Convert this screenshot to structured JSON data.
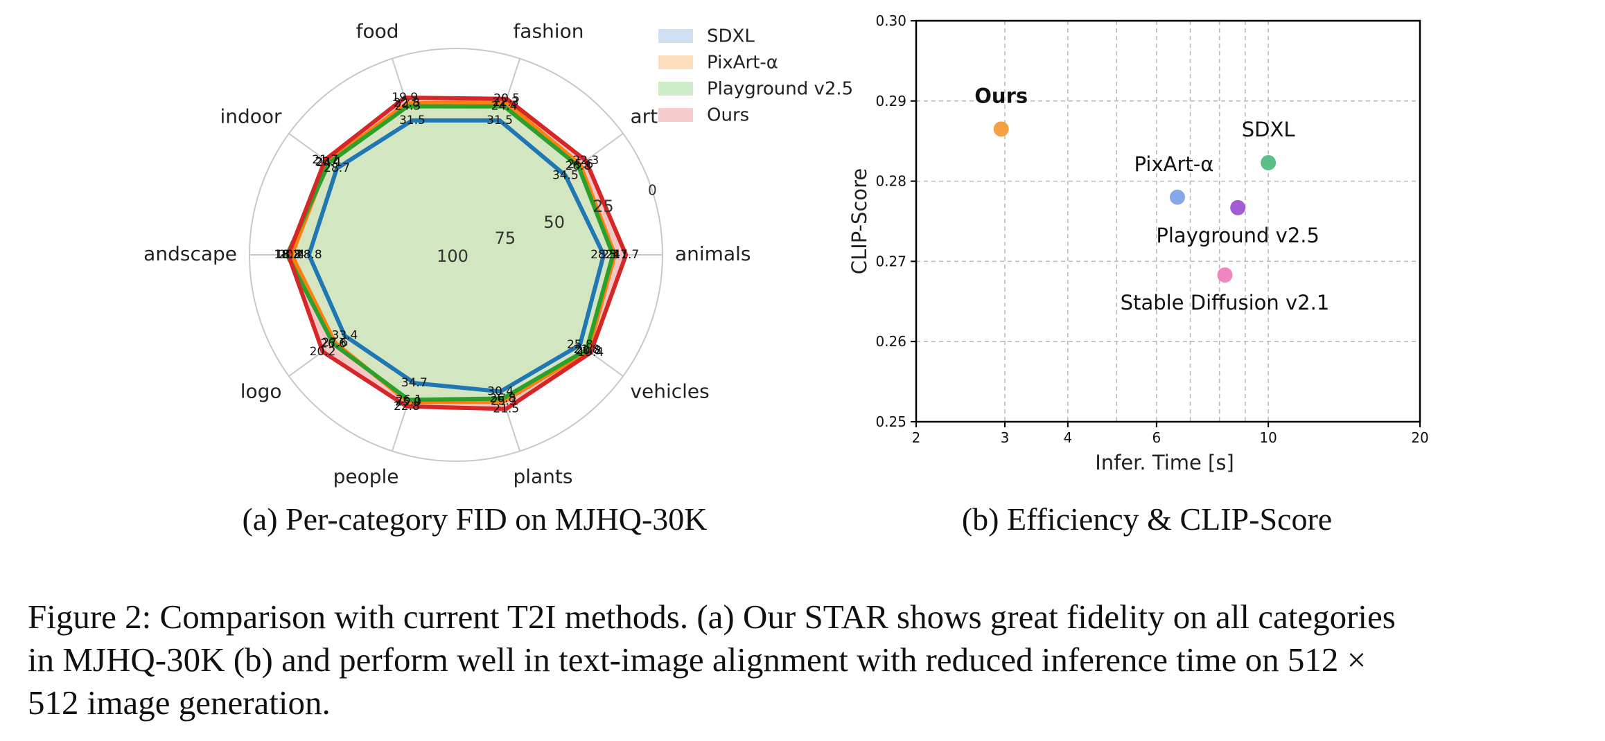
{
  "chart_data": [
    {
      "type": "radar",
      "subcaption": "(a) Per-category FID on MJHQ-30K",
      "categories": [
        "fashion",
        "art",
        "animals",
        "vehicles",
        "plants",
        "people",
        "logo",
        "andscape",
        "indoor",
        "food"
      ],
      "radial_ticks": [
        "0",
        "25",
        "50",
        "75",
        "100"
      ],
      "radial_range": [
        100,
        0
      ],
      "grid": true,
      "legend_position": "top-right",
      "series": [
        {
          "name": "SDXL",
          "color": "#1f77b4",
          "fill": "#c6dbef",
          "values": [
            31.5,
            34.5,
            28.5,
            25.8,
            30.4,
            34.7,
            33.4,
            28.8,
            28.7,
            31.5
          ]
        },
        {
          "name": "PixArt-α",
          "color": "#ff7f0e",
          "fill": "#fdd9b5",
          "values": [
            22.3,
            25.6,
            23.1,
            20.8,
            25.3,
            25.0,
            27.6,
            20.4,
            23.4,
            22.8
          ]
        },
        {
          "name": "Playground v2.5",
          "color": "#2ca02c",
          "fill": "#c7e9c0",
          "values": [
            24.4,
            26.8,
            24.0,
            21.8,
            26.8,
            26.1,
            26.6,
            18.2,
            24.1,
            24.3
          ]
        },
        {
          "name": "Ours",
          "color": "#d62728",
          "fill": "#f4c2c2",
          "values": [
            20.5,
            22.3,
            17.7,
            19.4,
            21.5,
            22.8,
            20.2,
            18.8,
            21.7,
            19.9
          ]
        }
      ],
      "labels": [
        {
          "series": 0,
          "texts": [
            "31.5",
            "34.5",
            "28.5",
            "25.8",
            "30.4",
            "34.7",
            "33.4",
            "28.8",
            "28.7",
            "31.5"
          ]
        },
        {
          "series": 1,
          "texts": [
            "22.3",
            "25.6",
            "23.1",
            "20.8",
            "25.3",
            "25.0",
            "27.6",
            "20.4",
            "23.4",
            "22.8"
          ]
        },
        {
          "series": 2,
          "texts": [
            "24.4",
            "26.8",
            "24",
            "21.8",
            "26.8",
            "26.1",
            "26.6",
            "18.2",
            "24.1",
            "24.3"
          ]
        },
        {
          "series": 3,
          "texts": [
            "20.5",
            "22.3",
            "17.7",
            "19.4",
            "21.5",
            "22.8",
            "20.2",
            "18.8",
            "21.7",
            "19.9"
          ]
        }
      ]
    },
    {
      "type": "scatter",
      "subcaption": "(b) Efficiency & CLIP-Score",
      "xlabel": "Infer. Time [s]",
      "ylabel": "CLIP-Score",
      "xscale": "log",
      "xlim": [
        2,
        20
      ],
      "ylim": [
        0.25,
        0.3
      ],
      "xticks": [
        "2",
        "3",
        "4",
        "6",
        "10",
        "20"
      ],
      "xtick_values": [
        2,
        3,
        4,
        6,
        10,
        20
      ],
      "yticks": [
        "0.25",
        "0.26",
        "0.27",
        "0.28",
        "0.29",
        "0.30"
      ],
      "ytick_values": [
        0.25,
        0.26,
        0.27,
        0.28,
        0.29,
        0.3
      ],
      "grid": true,
      "points": [
        {
          "label": "Ours",
          "x": 2.95,
          "y": 0.2865,
          "color": "#f5a043",
          "bold": true
        },
        {
          "label": "SDXL",
          "x": 10.0,
          "y": 0.2823,
          "color": "#5bbf8a",
          "bold": false
        },
        {
          "label": "PixArt-α",
          "x": 6.6,
          "y": 0.278,
          "color": "#86a8e7",
          "bold": false
        },
        {
          "label": "Playground v2.5",
          "x": 8.7,
          "y": 0.2767,
          "color": "#a35bd6",
          "bold": false
        },
        {
          "label": "Stable Diffusion v2.1",
          "x": 8.2,
          "y": 0.2683,
          "color": "#ef86c0",
          "bold": false
        }
      ]
    }
  ],
  "caption": {
    "line1": "Figure 2: Comparison with current T2I methods. (a) Our STAR shows great fidelity on all categories",
    "line2": "in MJHQ-30K (b) and perform well in text-image alignment with reduced inference time on 512 ×",
    "line3": "512 image generation."
  }
}
